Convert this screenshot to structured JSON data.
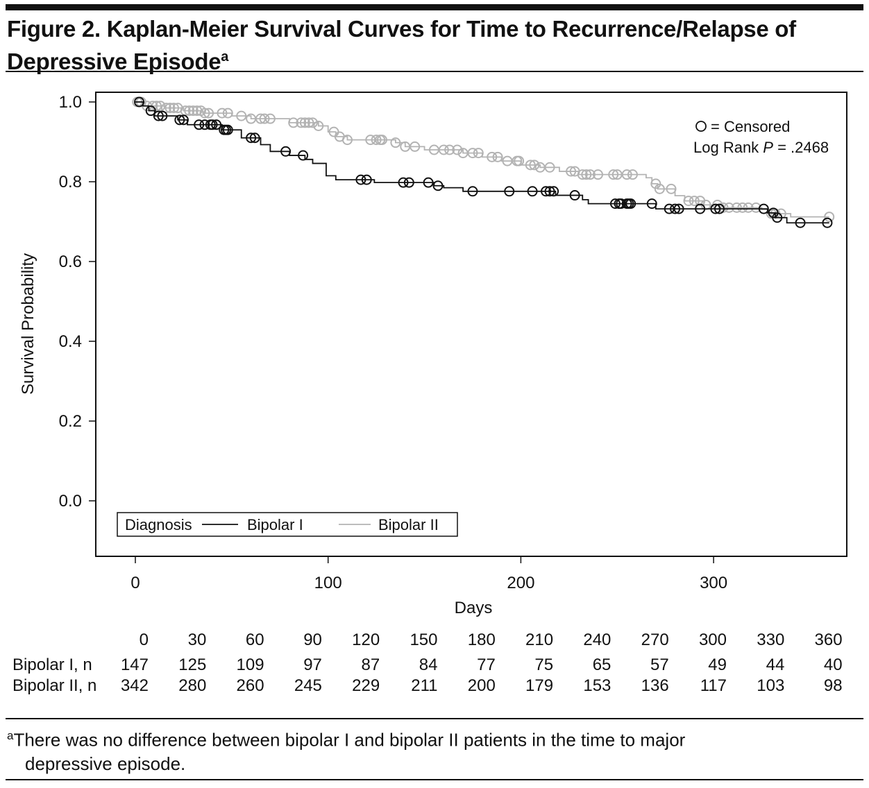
{
  "title": "Figure 2. Kaplan-Meier Survival Curves for Time to Recurrence/Relapse of Depressive Episode",
  "title_line1": "Figure 2. Kaplan-Meier Survival Curves for Time to Recurrence/Relapse of",
  "title_line2": "Depressive Episode",
  "title_sup": "a",
  "footnote_sup": "a",
  "footnote_line1": "There was no difference between bipolar I and bipolar II patients in the time to major",
  "footnote_line2": "depressive episode.",
  "chart_data": {
    "type": "line",
    "subtype": "kaplan-meier step",
    "xlabel": "Days",
    "ylabel": "Survival Probability",
    "xlim": [
      -20,
      370
    ],
    "ylim": [
      -0.14,
      1.025
    ],
    "xticks": [
      0,
      100,
      200,
      300
    ],
    "yticks": [
      "0.0",
      "0.2",
      "0.4",
      "0.6",
      "0.8",
      "1.0"
    ],
    "grid": false,
    "annotation_censored": "= Censored",
    "annotation_logrank": "Log Rank",
    "annotation_p": "P",
    "annotation_pvalue": "= .2468",
    "legend": {
      "title": "Diagnosis",
      "placement": "bottom-left",
      "entries": [
        "Bipolar I",
        "Bipolar II"
      ]
    },
    "series": [
      {
        "name": "Bipolar I",
        "color": "#111111",
        "steps": [
          [
            0,
            1.0
          ],
          [
            4,
            0.99
          ],
          [
            7,
            0.978
          ],
          [
            10,
            0.965
          ],
          [
            22,
            0.955
          ],
          [
            27,
            0.943
          ],
          [
            45,
            0.93
          ],
          [
            55,
            0.91
          ],
          [
            65,
            0.893
          ],
          [
            70,
            0.876
          ],
          [
            80,
            0.866
          ],
          [
            88,
            0.856
          ],
          [
            92,
            0.846
          ],
          [
            99,
            0.815
          ],
          [
            104,
            0.805
          ],
          [
            124,
            0.798
          ],
          [
            155,
            0.79
          ],
          [
            160,
            0.785
          ],
          [
            170,
            0.776
          ],
          [
            218,
            0.766
          ],
          [
            232,
            0.755
          ],
          [
            235,
            0.745
          ],
          [
            270,
            0.732
          ],
          [
            328,
            0.722
          ],
          [
            332,
            0.71
          ],
          [
            338,
            0.697
          ],
          [
            360,
            0.697
          ]
        ],
        "censored": [
          2,
          8,
          12,
          14,
          23,
          25,
          33,
          36,
          39,
          40,
          42,
          46,
          47,
          48,
          60,
          62,
          78,
          87,
          117,
          120,
          139,
          142,
          152,
          157,
          175,
          194,
          206,
          213,
          215,
          217,
          228,
          249,
          251,
          252,
          255,
          256,
          257,
          268,
          277,
          280,
          282,
          293,
          301,
          303,
          326,
          331,
          333,
          345,
          359
        ]
      },
      {
        "name": "Bipolar II",
        "color": "#b3b3b3",
        "steps": [
          [
            0,
            1.0
          ],
          [
            5,
            0.99
          ],
          [
            15,
            0.985
          ],
          [
            25,
            0.978
          ],
          [
            35,
            0.972
          ],
          [
            50,
            0.965
          ],
          [
            60,
            0.958
          ],
          [
            80,
            0.948
          ],
          [
            95,
            0.94
          ],
          [
            100,
            0.925
          ],
          [
            104,
            0.913
          ],
          [
            110,
            0.905
          ],
          [
            135,
            0.898
          ],
          [
            140,
            0.888
          ],
          [
            150,
            0.88
          ],
          [
            170,
            0.872
          ],
          [
            180,
            0.862
          ],
          [
            190,
            0.852
          ],
          [
            200,
            0.842
          ],
          [
            210,
            0.836
          ],
          [
            220,
            0.826
          ],
          [
            230,
            0.818
          ],
          [
            265,
            0.81
          ],
          [
            268,
            0.795
          ],
          [
            271,
            0.782
          ],
          [
            280,
            0.765
          ],
          [
            285,
            0.752
          ],
          [
            295,
            0.742
          ],
          [
            305,
            0.735
          ],
          [
            325,
            0.73
          ],
          [
            330,
            0.72
          ],
          [
            340,
            0.712
          ],
          [
            360,
            0.712
          ]
        ],
        "censored": [
          1,
          3,
          6,
          9,
          11,
          13,
          16,
          18,
          20,
          22,
          26,
          28,
          30,
          32,
          34,
          36,
          38,
          45,
          48,
          55,
          60,
          65,
          67,
          70,
          82,
          86,
          88,
          90,
          92,
          95,
          103,
          106,
          110,
          122,
          125,
          127,
          128,
          135,
          140,
          145,
          155,
          160,
          163,
          167,
          170,
          175,
          178,
          185,
          188,
          193,
          198,
          199,
          205,
          207,
          210,
          215,
          226,
          228,
          232,
          234,
          236,
          240,
          248,
          250,
          255,
          258,
          270,
          272,
          278,
          287,
          290,
          293,
          296,
          302,
          305,
          308,
          312,
          315,
          318,
          322,
          330,
          332,
          335,
          360
        ]
      }
    ],
    "risk_table": {
      "times": [
        0,
        30,
        60,
        90,
        120,
        150,
        180,
        210,
        240,
        270,
        300,
        330,
        360
      ],
      "rows": [
        {
          "label": "Bipolar I, n",
          "values": [
            147,
            125,
            109,
            97,
            87,
            84,
            77,
            75,
            65,
            57,
            49,
            44,
            40
          ]
        },
        {
          "label": "Bipolar II, n",
          "values": [
            342,
            280,
            260,
            245,
            229,
            211,
            200,
            179,
            153,
            136,
            117,
            103,
            98
          ]
        }
      ]
    }
  }
}
